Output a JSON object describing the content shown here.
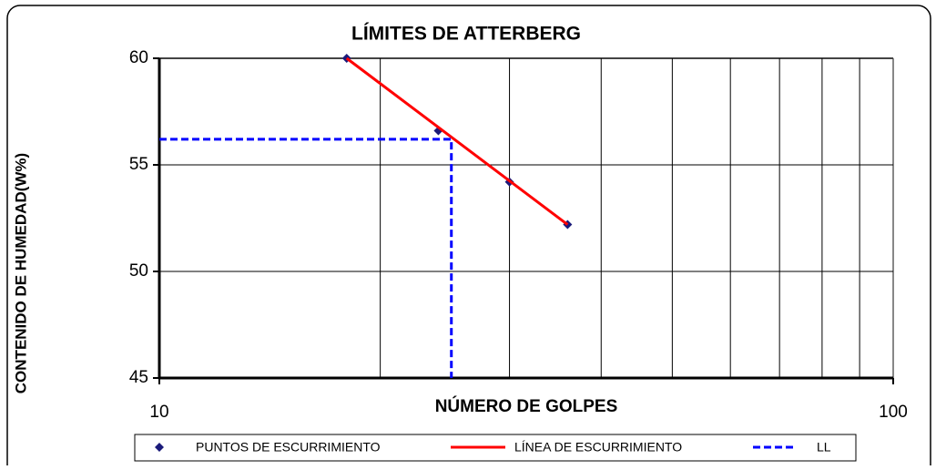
{
  "chart_data": {
    "type": "scatter",
    "title": "LÍMITES DE ATTERBERG",
    "x_label": "NÚMERO DE GOLPES",
    "y_label": "CONTENIDO DE HUMEDAD(W%)",
    "x_log": true,
    "xlim": [
      10,
      100
    ],
    "xticks": [
      10,
      100
    ],
    "x_minor_grid": [
      20,
      30,
      40,
      50,
      60,
      70,
      80,
      90
    ],
    "ylim": [
      45,
      60
    ],
    "yticks": [
      45,
      50,
      55,
      60
    ],
    "grid": true,
    "legend": "bottom",
    "series": [
      {
        "name": "PUNTOS DE ESCURRIMIENTO",
        "color": "#1a1a7a",
        "mode": "markers",
        "x": [
          18,
          24,
          30,
          36
        ],
        "values": [
          60,
          56.6,
          54.2,
          52.2
        ]
      },
      {
        "name": "LÍNEA DE ESCURRIMIENTO",
        "color": "#ff0000",
        "mode": "line",
        "x": [
          18,
          36
        ],
        "values": [
          60,
          52.2
        ]
      },
      {
        "name": "LL",
        "color": "#0000ff",
        "mode": "dashed",
        "x": [
          10,
          25,
          25
        ],
        "values": [
          56.2,
          56.2,
          45
        ]
      }
    ]
  }
}
